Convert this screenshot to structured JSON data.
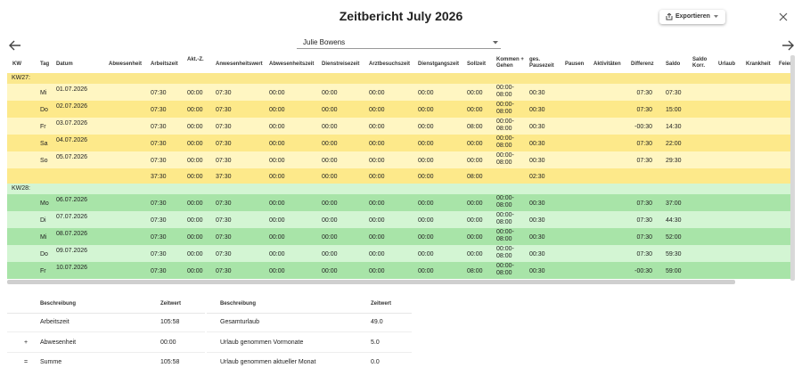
{
  "header": {
    "title": "Zeitbericht July 2026",
    "export_button": "Exportieren",
    "employee": "Julie Bowens"
  },
  "table": {
    "columns": [
      "KW",
      "Tag",
      "Datum",
      "Abwesenheit",
      "Arbeitszeit",
      "Akt.-Z.",
      "Anwesenheitswert",
      "Abwesenheitszeit",
      "Dienstreisezeit",
      "Arztbesuchszeit",
      "Dienstgangszeit",
      "Sollzeit",
      "Kommen + Gehen",
      "ges. Pausezeit",
      "Pausen",
      "Aktivitäten",
      "Differenz",
      "Saldo",
      "Saldo Korr.",
      "Urlaub",
      "Krankheit",
      "Feier"
    ],
    "groups": [
      {
        "label": "KW27:",
        "rows": [
          [
            null,
            "Mi",
            "01.07.2026",
            null,
            "07:30",
            "00:00",
            "07:30",
            "00:00",
            "00:00",
            "00:00",
            "00:00",
            "00:00",
            "00:00-08:00",
            "00:30",
            null,
            null,
            "07:30",
            "07:30"
          ],
          [
            null,
            "Do",
            "02.07.2026",
            null,
            "07:30",
            "00:00",
            "07:30",
            "00:00",
            "00:00",
            "00:00",
            "00:00",
            "00:00",
            "00:00-08:00",
            "00:30",
            null,
            null,
            "07:30",
            "15:00"
          ],
          [
            null,
            "Fr",
            "03.07.2026",
            null,
            "07:30",
            "00:00",
            "07:30",
            "00:00",
            "00:00",
            "00:00",
            "00:00",
            "08:00",
            "00:00-08:00",
            "00:30",
            null,
            null,
            "-00:30",
            "14:30"
          ],
          [
            null,
            "Sa",
            "04.07.2026",
            null,
            "07:30",
            "00:00",
            "07:30",
            "00:00",
            "00:00",
            "00:00",
            "00:00",
            "00:00",
            "00:00-08:00",
            "00:30",
            null,
            null,
            "07:30",
            "22:00"
          ],
          [
            null,
            "So",
            "05.07.2026",
            null,
            "07:30",
            "00:00",
            "07:30",
            "00:00",
            "00:00",
            "00:00",
            "00:00",
            "00:00",
            "00:00-08:00",
            "00:30",
            null,
            null,
            "07:30",
            "29:30"
          ]
        ],
        "total": [
          null,
          null,
          null,
          null,
          "37:30",
          "00:00",
          "37:30",
          "00:00",
          "00:00",
          "00:00",
          "00:00",
          "08:00",
          null,
          "02:30"
        ]
      },
      {
        "label": "KW28:",
        "rows": [
          [
            null,
            "Mo",
            "06.07.2026",
            null,
            "07:30",
            "00:00",
            "07:30",
            "00:00",
            "00:00",
            "00:00",
            "00:00",
            "00:00",
            "00:00-08:00",
            "00:30",
            null,
            null,
            "07:30",
            "37:00"
          ],
          [
            null,
            "Di",
            "07.07.2026",
            null,
            "07:30",
            "00:00",
            "07:30",
            "00:00",
            "00:00",
            "00:00",
            "00:00",
            "00:00",
            "00:00-08:00",
            "00:30",
            null,
            null,
            "07:30",
            "44:30"
          ],
          [
            null,
            "Mi",
            "08.07.2026",
            null,
            "07:30",
            "00:00",
            "07:30",
            "00:00",
            "00:00",
            "00:00",
            "00:00",
            "00:00",
            "00:00-08:00",
            "00:30",
            null,
            null,
            "07:30",
            "52:00"
          ],
          [
            null,
            "Do",
            "09.07.2026",
            null,
            "07:30",
            "00:00",
            "07:30",
            "00:00",
            "00:00",
            "00:00",
            "00:00",
            "00:00",
            "00:00-08:00",
            "00:30",
            null,
            null,
            "07:30",
            "59:30"
          ],
          [
            null,
            "Fr",
            "10.07.2026",
            null,
            "07:30",
            "00:00",
            "07:30",
            "00:00",
            "00:00",
            "00:00",
            "00:00",
            "08:00",
            "00:00-08:00",
            "00:30",
            null,
            null,
            "-00:30",
            "59:00"
          ]
        ]
      }
    ]
  },
  "summary": {
    "left": {
      "headers": [
        "Beschreibung",
        "Zeitwert"
      ],
      "rows": [
        {
          "label": "Arbeitszeit",
          "value": "105:58"
        },
        {
          "op": "+",
          "label": "Abwesenheit",
          "value": "00:00"
        },
        {
          "op": "=",
          "label": "Summe",
          "value": "105:58"
        }
      ]
    },
    "right": {
      "headers": [
        "Beschreibung",
        "Zeitwert"
      ],
      "rows": [
        {
          "label": "Gesamturlaub",
          "value": "49.0"
        },
        {
          "label": "Urlaub genommen Vormonate",
          "value": "5.0"
        },
        {
          "label": "Urlaub genommen aktueller Monat",
          "value": "0.0"
        }
      ]
    }
  }
}
